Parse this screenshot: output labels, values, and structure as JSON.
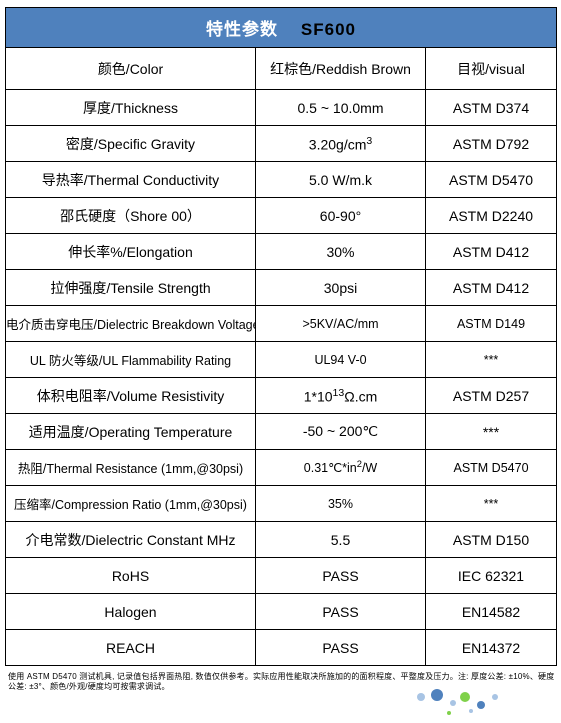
{
  "header": {
    "left": "特性参数",
    "right": "SF600"
  },
  "cols": {
    "prop_w": 250,
    "val_w": 170,
    "std_w": 131
  },
  "rows": [
    {
      "prop": "颜色/Color",
      "val": "红棕色/Reddish Brown",
      "std": "目视/visual",
      "h": 42
    },
    {
      "prop": "厚度/Thickness",
      "val": "0.5 ~ 10.0mm",
      "std": "ASTM D374"
    },
    {
      "prop": "密度/Specific Gravity",
      "val_html": "3.20g/cm<sup>3</sup>",
      "std": "ASTM D792"
    },
    {
      "prop": "导热率/Thermal Conductivity",
      "val": "5.0 W/m.k",
      "std": "ASTM D5470"
    },
    {
      "prop": "邵氏硬度（Shore 00）",
      "val": "60-90°",
      "std": "ASTM D2240"
    },
    {
      "prop": "伸长率%/Elongation",
      "val": "30%",
      "std": "ASTM D412"
    },
    {
      "prop": "拉伸强度/Tensile Strength",
      "val": "30psi",
      "std": "ASTM D412"
    },
    {
      "prop": "电介质击穿电压/Dielectric Breakdown Voltageh",
      "val": ">5KV/AC/mm",
      "std": "ASTM D149",
      "sm": true
    },
    {
      "prop": "UL 防火等级/UL Flammability Rating",
      "val": "UL94 V-0",
      "std": "***",
      "sm": true
    },
    {
      "prop": "体积电阻率/Volume Resistivity",
      "val_html": "1*10<sup>13</sup>Ω.cm",
      "std": "ASTM D257"
    },
    {
      "prop": "适用温度/Operating Temperature",
      "val": "-50 ~ 200℃",
      "std": "***"
    },
    {
      "prop": "热阻/Thermal Resistance (1mm,@30psi)",
      "val_html": "0.31℃*in<sup>2</sup>/W",
      "std": "ASTM D5470",
      "sm": true
    },
    {
      "prop": "压缩率/Compression Ratio (1mm,@30psi)",
      "val": "35%",
      "std": "***",
      "sm": true
    },
    {
      "prop": "介电常数/Dielectric Constant MHz",
      "val": "5.5",
      "std": "ASTM D150"
    },
    {
      "prop": "RoHS",
      "val": "PASS",
      "std": "IEC 62321"
    },
    {
      "prop": "Halogen",
      "val": "PASS",
      "std": "EN14582"
    },
    {
      "prop": "REACH",
      "val": "PASS",
      "std": "EN14372"
    }
  ],
  "footnote": "使用 ASTM D5470 测试机具, 记录值包括界面热阻, 数值仅供参考。实际应用性能取决所施加的的面积程度、平整度及压力。注: 厚度公差: ±10%、硬度公差: ±3°、颜色/外观/硬度均可按需求调试。",
  "deco_colors": {
    "blue": "#4f81bd",
    "light": "#a8c4e4",
    "green": "#7fd14a"
  }
}
